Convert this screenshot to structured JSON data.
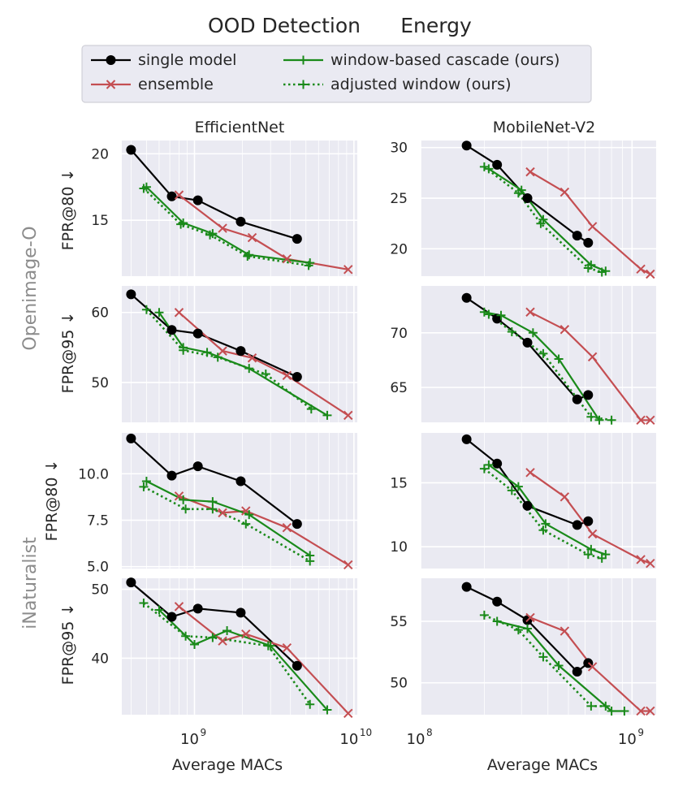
{
  "figure": {
    "title_left": "OOD Detection",
    "title_right": "Energy",
    "column_titles": [
      "EfficientNet",
      "MobileNet-V2"
    ],
    "row_group_labels": [
      "Openimage-O",
      "iNaturalist"
    ],
    "row_ylabels": [
      "FPR@80 ↓",
      "FPR@95 ↓",
      "FPR@80 ↓",
      "FPR@95 ↓"
    ],
    "xlabel": "Average MACs",
    "colors": {
      "single": "#000000",
      "ensemble": "#c44e52",
      "window": "#1a8a1a",
      "adjusted": "#1a8a1a",
      "panel_bg": "#eaeaf2",
      "grid": "#ffffff"
    }
  },
  "legend": {
    "entries": [
      {
        "key": "single",
        "label": "single model"
      },
      {
        "key": "ensemble",
        "label": "ensemble"
      },
      {
        "key": "window",
        "label": "window-based cascade (ours)"
      },
      {
        "key": "adjusted",
        "label": "adjusted window (ours)"
      }
    ]
  },
  "chart_data": [
    {
      "type": "line",
      "column": "EfficientNet",
      "dataset": "Openimage-O",
      "ylabel": "FPR@80 ↓",
      "xscale": "log",
      "xlim": [
        350000000.0,
        10500000000.0
      ],
      "ylim": [
        10.8,
        21.0
      ],
      "yticks": [
        {
          "v": 15,
          "label": "15"
        },
        {
          "v": 20,
          "label": "20"
        }
      ],
      "series": [
        {
          "key": "single",
          "x": [
            400000000.0,
            720000000.0,
            1050000000.0,
            1950000000.0,
            4400000000.0
          ],
          "y": [
            20.3,
            16.8,
            16.5,
            14.9,
            13.6
          ]
        },
        {
          "key": "ensemble",
          "x": [
            800000000.0,
            1500000000.0,
            2300000000.0,
            3800000000.0,
            9200000000.0
          ],
          "y": [
            16.9,
            14.4,
            13.7,
            12.1,
            11.3
          ]
        },
        {
          "key": "window",
          "x": [
            500000000.0,
            850000000.0,
            1300000000.0,
            2200000000.0,
            5300000000.0
          ],
          "y": [
            17.5,
            14.8,
            14.0,
            12.4,
            11.8
          ]
        },
        {
          "key": "adjusted",
          "x": [
            480000000.0,
            820000000.0,
            1250000000.0,
            2150000000.0,
            5200000000.0
          ],
          "y": [
            17.4,
            14.7,
            13.9,
            12.3,
            11.6
          ]
        }
      ]
    },
    {
      "type": "line",
      "column": "MobileNet-V2",
      "dataset": "Openimage-O",
      "ylabel": "FPR@80 ↓",
      "xscale": "log",
      "xlim": [
        100000000.0,
        1300000000.0
      ],
      "ylim": [
        17.3,
        30.7
      ],
      "yticks": [
        {
          "v": 20,
          "label": "20"
        },
        {
          "v": 25,
          "label": "25"
        },
        {
          "v": 30,
          "label": "30"
        }
      ],
      "series": [
        {
          "key": "single",
          "x": [
            165000000.0,
            230000000.0,
            320000000.0,
            550000000.0,
            620000000.0
          ],
          "y": [
            30.2,
            28.3,
            25.0,
            21.3,
            20.6
          ]
        },
        {
          "key": "ensemble",
          "x": [
            330000000.0,
            480000000.0,
            650000000.0,
            1100000000.0,
            1220000000.0
          ],
          "y": [
            27.6,
            25.6,
            22.2,
            18.0,
            17.5
          ]
        },
        {
          "key": "window",
          "x": [
            210000000.0,
            300000000.0,
            380000000.0,
            640000000.0,
            750000000.0
          ],
          "y": [
            27.9,
            25.8,
            22.9,
            18.4,
            17.8
          ]
        },
        {
          "key": "adjusted",
          "x": [
            200000000.0,
            290000000.0,
            370000000.0,
            620000000.0,
            720000000.0
          ],
          "y": [
            28.1,
            25.5,
            22.5,
            18.1,
            17.7
          ]
        }
      ]
    },
    {
      "type": "line",
      "column": "EfficientNet",
      "dataset": "Openimage-O",
      "ylabel": "FPR@95 ↓",
      "xscale": "log",
      "xlim": [
        350000000.0,
        10500000000.0
      ],
      "ylim": [
        44.3,
        63.8
      ],
      "yticks": [
        {
          "v": 50,
          "label": "50"
        },
        {
          "v": 60,
          "label": "60"
        }
      ],
      "series": [
        {
          "key": "single",
          "x": [
            400000000.0,
            720000000.0,
            1050000000.0,
            1950000000.0,
            4400000000.0
          ],
          "y": [
            62.6,
            57.5,
            57.0,
            54.5,
            50.8
          ]
        },
        {
          "key": "ensemble",
          "x": [
            800000000.0,
            1500000000.0,
            2300000000.0,
            3800000000.0,
            9200000000.0
          ],
          "y": [
            60.0,
            54.5,
            53.5,
            51.0,
            45.3
          ]
        },
        {
          "key": "window",
          "x": [
            600000000.0,
            850000000.0,
            1200000000.0,
            2200000000.0,
            6800000000.0
          ],
          "y": [
            60.0,
            55.0,
            54.3,
            52.0,
            45.3
          ]
        },
        {
          "key": "adjusted",
          "x": [
            500000000.0,
            850000000.0,
            1400000000.0,
            2800000000.0,
            5400000000.0
          ],
          "y": [
            60.4,
            54.6,
            53.6,
            51.2,
            46.2
          ]
        }
      ]
    },
    {
      "type": "line",
      "column": "MobileNet-V2",
      "dataset": "Openimage-O",
      "ylabel": "FPR@95 ↓",
      "xscale": "log",
      "xlim": [
        100000000.0,
        1300000000.0
      ],
      "ylim": [
        61.8,
        74.3
      ],
      "yticks": [
        {
          "v": 65,
          "label": "65"
        },
        {
          "v": 70,
          "label": "70"
        }
      ],
      "series": [
        {
          "key": "single",
          "x": [
            165000000.0,
            230000000.0,
            320000000.0,
            550000000.0,
            620000000.0
          ],
          "y": [
            73.2,
            71.3,
            69.1,
            63.9,
            64.3
          ]
        },
        {
          "key": "ensemble",
          "x": [
            330000000.0,
            480000000.0,
            650000000.0,
            1100000000.0,
            1220000000.0
          ],
          "y": [
            71.9,
            70.3,
            67.8,
            62.0,
            62.0
          ]
        },
        {
          "key": "window",
          "x": [
            200000000.0,
            240000000.0,
            340000000.0,
            450000000.0,
            700000000.0
          ],
          "y": [
            71.9,
            71.6,
            70.0,
            67.6,
            62.0
          ]
        },
        {
          "key": "adjusted",
          "x": [
            210000000.0,
            270000000.0,
            380000000.0,
            640000000.0,
            800000000.0
          ],
          "y": [
            71.7,
            70.1,
            68.1,
            62.3,
            62.0
          ]
        }
      ]
    },
    {
      "type": "line",
      "column": "EfficientNet",
      "dataset": "iNaturalist",
      "ylabel": "FPR@80 ↓",
      "xscale": "log",
      "xlim": [
        350000000.0,
        10500000000.0
      ],
      "ylim": [
        4.9,
        12.2
      ],
      "yticks": [
        {
          "v": 5.0,
          "label": "5.0"
        },
        {
          "v": 7.5,
          "label": "7.5"
        },
        {
          "v": 10.0,
          "label": "10.0"
        }
      ],
      "series": [
        {
          "key": "single",
          "x": [
            400000000.0,
            720000000.0,
            1050000000.0,
            1950000000.0,
            4400000000.0
          ],
          "y": [
            11.9,
            9.9,
            10.4,
            9.6,
            7.3
          ]
        },
        {
          "key": "ensemble",
          "x": [
            800000000.0,
            1500000000.0,
            2100000000.0,
            3800000000.0,
            9200000000.0
          ],
          "y": [
            8.8,
            7.9,
            8.0,
            7.1,
            5.1
          ]
        },
        {
          "key": "window",
          "x": [
            500000000.0,
            850000000.0,
            1300000000.0,
            2200000000.0,
            5300000000.0
          ],
          "y": [
            9.6,
            8.6,
            8.5,
            7.8,
            5.6
          ]
        },
        {
          "key": "adjusted",
          "x": [
            480000000.0,
            880000000.0,
            1300000000.0,
            2100000000.0,
            5300000000.0
          ],
          "y": [
            9.3,
            8.1,
            8.1,
            7.3,
            5.3
          ]
        }
      ]
    },
    {
      "type": "line",
      "column": "MobileNet-V2",
      "dataset": "iNaturalist",
      "ylabel": "FPR@80 ↓",
      "xscale": "log",
      "xlim": [
        100000000.0,
        1300000000.0
      ],
      "ylim": [
        8.3,
        18.9
      ],
      "yticks": [
        {
          "v": 10,
          "label": "10"
        },
        {
          "v": 15,
          "label": "15"
        }
      ],
      "series": [
        {
          "key": "single",
          "x": [
            165000000.0,
            230000000.0,
            320000000.0,
            550000000.0,
            620000000.0
          ],
          "y": [
            18.4,
            16.5,
            13.2,
            11.7,
            12.0
          ]
        },
        {
          "key": "ensemble",
          "x": [
            330000000.0,
            480000000.0,
            650000000.0,
            1100000000.0,
            1220000000.0
          ],
          "y": [
            15.8,
            13.9,
            11.0,
            9.0,
            8.7
          ]
        },
        {
          "key": "window",
          "x": [
            210000000.0,
            290000000.0,
            390000000.0,
            640000000.0,
            750000000.0
          ],
          "y": [
            16.4,
            14.7,
            11.8,
            9.8,
            9.4
          ]
        },
        {
          "key": "adjusted",
          "x": [
            200000000.0,
            270000000.0,
            380000000.0,
            620000000.0,
            720000000.0
          ],
          "y": [
            16.1,
            14.4,
            11.3,
            9.4,
            9.1
          ]
        }
      ]
    },
    {
      "type": "line",
      "column": "EfficientNet",
      "dataset": "iNaturalist",
      "ylabel": "FPR@95 ↓",
      "xscale": "log",
      "xlim": [
        350000000.0,
        10500000000.0
      ],
      "ylim": [
        31.8,
        51.6
      ],
      "yticks": [
        {
          "v": 40,
          "label": "40"
        },
        {
          "v": 50,
          "label": "50"
        }
      ],
      "series": [
        {
          "key": "single",
          "x": [
            400000000.0,
            720000000.0,
            1050000000.0,
            1950000000.0,
            4400000000.0
          ],
          "y": [
            51.0,
            46.0,
            47.2,
            46.6,
            38.9
          ]
        },
        {
          "key": "ensemble",
          "x": [
            800000000.0,
            1500000000.0,
            2100000000.0,
            3800000000.0,
            9200000000.0
          ],
          "y": [
            47.5,
            42.5,
            43.5,
            41.5,
            32.0
          ]
        },
        {
          "key": "window",
          "x": [
            600000000.0,
            1000000000.0,
            1600000000.0,
            3000000000.0,
            6800000000.0
          ],
          "y": [
            47.0,
            42.0,
            44.0,
            41.8,
            32.5
          ]
        },
        {
          "key": "adjusted",
          "x": [
            480000000.0,
            880000000.0,
            1300000000.0,
            2900000000.0,
            5300000000.0
          ],
          "y": [
            48.0,
            43.2,
            43.0,
            41.8,
            33.3
          ]
        }
      ]
    },
    {
      "type": "line",
      "column": "MobileNet-V2",
      "dataset": "iNaturalist",
      "ylabel": "FPR@95 ↓",
      "xscale": "log",
      "xlim": [
        100000000.0,
        1300000000.0
      ],
      "ylim": [
        47.4,
        58.5
      ],
      "yticks": [
        {
          "v": 50,
          "label": "50"
        },
        {
          "v": 55,
          "label": "55"
        }
      ],
      "series": [
        {
          "key": "single",
          "x": [
            165000000.0,
            230000000.0,
            320000000.0,
            550000000.0,
            620000000.0
          ],
          "y": [
            57.8,
            56.6,
            55.1,
            50.9,
            51.6
          ]
        },
        {
          "key": "ensemble",
          "x": [
            330000000.0,
            480000000.0,
            650000000.0,
            1100000000.0,
            1220000000.0
          ],
          "y": [
            55.3,
            54.2,
            51.3,
            47.7,
            47.7
          ]
        },
        {
          "key": "window",
          "x": [
            230000000.0,
            320000000.0,
            450000000.0,
            800000000.0,
            920000000.0
          ],
          "y": [
            55.0,
            54.4,
            51.4,
            47.7,
            47.7
          ]
        },
        {
          "key": "adjusted",
          "x": [
            200000000.0,
            290000000.0,
            380000000.0,
            640000000.0,
            750000000.0
          ],
          "y": [
            55.5,
            54.3,
            52.1,
            48.1,
            48.1
          ]
        }
      ]
    }
  ],
  "x_axes": [
    {
      "column": "EfficientNet",
      "ticks": [
        {
          "v": 1000000000.0,
          "base": "10",
          "exp": "9"
        },
        {
          "v": 10000000000.0,
          "base": "10",
          "exp": "10"
        }
      ]
    },
    {
      "column": "MobileNet-V2",
      "ticks": [
        {
          "v": 100000000.0,
          "base": "10",
          "exp": "8"
        },
        {
          "v": 1000000000.0,
          "base": "10",
          "exp": "9"
        }
      ]
    }
  ]
}
